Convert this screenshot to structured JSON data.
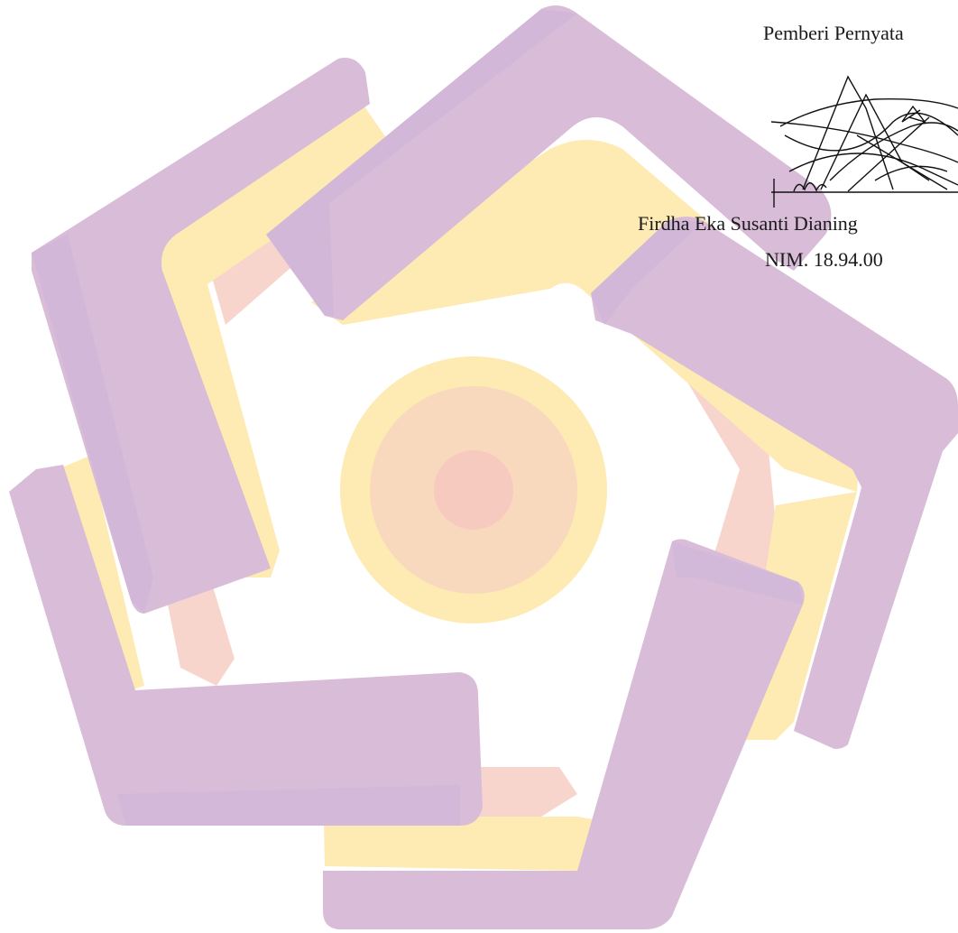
{
  "document": {
    "signer_role": "Pemberi Pernyata",
    "signer_name": "Firdha Eka Susanti Dianing",
    "signer_nim": "NIM. 18.94.00"
  },
  "watermark": {
    "icon": "pentagon-star-logo-watermark",
    "colors": {
      "purple": "#d9bcd7",
      "purple_dark": "#cfb6da",
      "yellow": "#fdebb3",
      "peach": "#f9d9bd",
      "pink": "#f6cabf"
    }
  },
  "signature": {
    "icon": "handwritten-signature",
    "ink_color": "#111111"
  }
}
